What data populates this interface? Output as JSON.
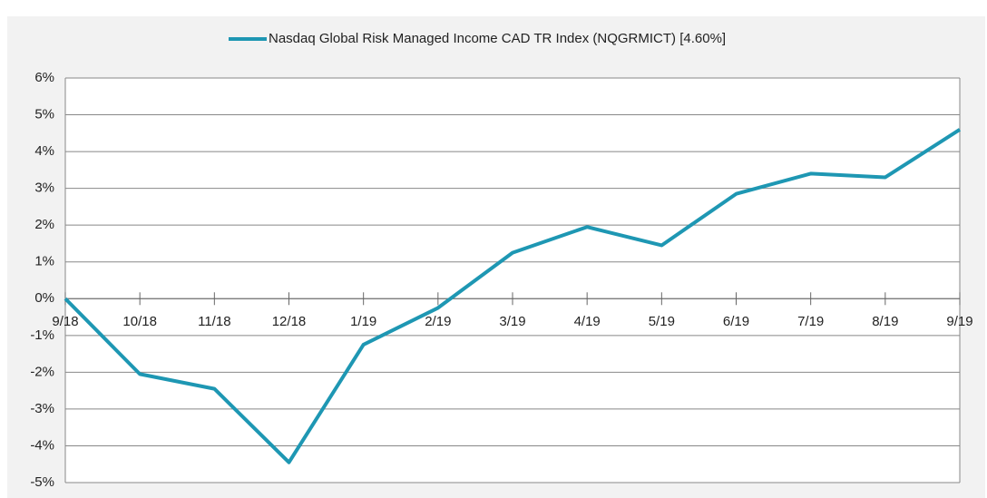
{
  "chart_data": {
    "type": "line",
    "categories": [
      "9/18",
      "10/18",
      "11/18",
      "12/18",
      "1/19",
      "2/19",
      "3/19",
      "4/19",
      "5/19",
      "6/19",
      "7/19",
      "8/19",
      "9/19"
    ],
    "series": [
      {
        "name": "Nasdaq Global Risk Managed Income CAD TR Index (NQGRMICT) [4.60%]",
        "color": "#1e97b3",
        "values": [
          0,
          -2.05,
          -2.45,
          -4.45,
          -1.25,
          -0.25,
          1.25,
          1.95,
          1.45,
          2.85,
          3.4,
          3.3,
          4.6
        ]
      }
    ],
    "ylim": [
      -5,
      6
    ],
    "yticks": [
      {
        "value": -5,
        "label": "-5%"
      },
      {
        "value": -4,
        "label": "-4%"
      },
      {
        "value": -3,
        "label": "-3%"
      },
      {
        "value": -2,
        "label": "-2%"
      },
      {
        "value": -1,
        "label": "-1%"
      },
      {
        "value": 0,
        "label": "0%"
      },
      {
        "value": 1,
        "label": "1%"
      },
      {
        "value": 2,
        "label": "2%"
      },
      {
        "value": 3,
        "label": "3%"
      },
      {
        "value": 4,
        "label": "4%"
      },
      {
        "value": 5,
        "label": "5%"
      },
      {
        "value": 6,
        "label": "6%"
      }
    ],
    "grid": true,
    "legend": "top"
  }
}
